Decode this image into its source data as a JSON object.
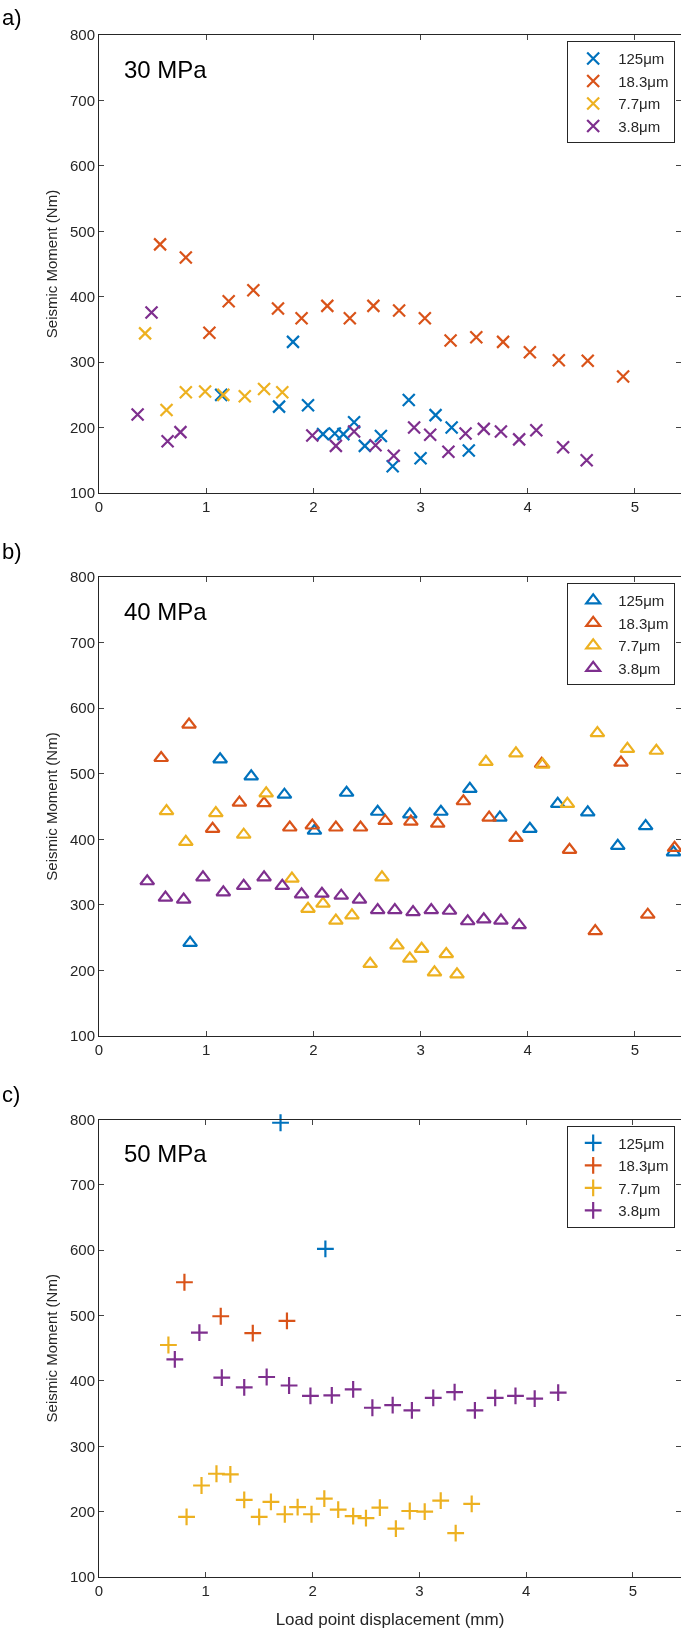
{
  "chart_data": [
    {
      "type": "scatter",
      "title": "a)",
      "subtitle": "30 MPa",
      "ylabel": "Seismic Moment (Nm)",
      "marker": "x",
      "legend": "top right",
      "xlim": [
        0,
        5.43
      ],
      "xticks": [
        0,
        1,
        2,
        3,
        4,
        5
      ],
      "ylim": [
        100,
        800
      ],
      "yticks": [
        100,
        200,
        300,
        400,
        500,
        600,
        700,
        800
      ],
      "series": [
        {
          "name": "125μm",
          "color": "#0072bd",
          "x": [
            1.81,
            1.14,
            1.68,
            1.95,
            2.09,
            2.2,
            2.28,
            2.38,
            2.48,
            2.63,
            2.74,
            2.89,
            3.0,
            3.14,
            3.29,
            3.45
          ],
          "values": [
            331,
            250,
            232,
            234,
            190,
            191,
            190,
            208,
            172,
            187,
            141,
            242,
            153,
            219,
            200,
            165
          ]
        },
        {
          "name": "18.3μm",
          "color": "#d95319",
          "x": [
            0.57,
            0.81,
            1.03,
            1.21,
            1.44,
            1.67,
            1.89,
            2.13,
            2.34,
            2.56,
            2.8,
            3.04,
            3.28,
            3.52,
            3.77,
            4.02,
            4.29,
            4.56,
            4.89
          ],
          "values": [
            480,
            460,
            345,
            393,
            410,
            382,
            367,
            386,
            367,
            386,
            379,
            367,
            333,
            338,
            331,
            315,
            303,
            302,
            278
          ]
        },
        {
          "name": "7.7μm",
          "color": "#edb120",
          "x": [
            0.43,
            0.63,
            0.81,
            0.99,
            1.16,
            1.36,
            1.54,
            1.71
          ],
          "values": [
            344,
            227,
            254,
            255,
            250,
            248,
            259,
            254
          ]
        },
        {
          "name": "3.8μm",
          "color": "#7e2f8e",
          "x": [
            0.36,
            0.49,
            0.64,
            0.76,
            1.99,
            2.21,
            2.38,
            2.58,
            2.75,
            2.94,
            3.09,
            3.26,
            3.42,
            3.59,
            3.75,
            3.92,
            4.08,
            4.33,
            4.55
          ],
          "values": [
            220,
            376,
            179,
            193,
            188,
            172,
            194,
            173,
            157,
            200,
            189,
            163,
            191,
            198,
            194,
            182,
            196,
            170,
            150
          ]
        }
      ]
    },
    {
      "type": "scatter",
      "title": "b)",
      "subtitle": "40 MPa",
      "ylabel": "Seismic Moment (Nm)",
      "marker": "triangle",
      "legend": "top right",
      "xlim": [
        0,
        5.43
      ],
      "xticks": [
        0,
        1,
        2,
        3,
        4,
        5
      ],
      "ylim": [
        100,
        800
      ],
      "yticks": [
        100,
        200,
        300,
        400,
        500,
        600,
        700,
        800
      ],
      "series": [
        {
          "name": "125μm",
          "color": "#0072bd",
          "x": [
            1.13,
            1.42,
            1.73,
            0.85,
            2.01,
            2.31,
            2.6,
            2.9,
            3.19,
            3.46,
            3.74,
            4.02,
            4.28,
            4.56,
            4.84,
            5.1,
            5.36
          ],
          "values": [
            522,
            496,
            468,
            242,
            413,
            471,
            442,
            438,
            442,
            477,
            433,
            416,
            454,
            441,
            390,
            420,
            380
          ]
        },
        {
          "name": "18.3μm",
          "color": "#d95319",
          "x": [
            0.58,
            0.84,
            1.06,
            1.31,
            1.54,
            1.78,
            1.99,
            2.21,
            2.44,
            2.67,
            2.91,
            3.16,
            3.4,
            3.64,
            3.89,
            4.13,
            4.39,
            4.63,
            4.87,
            5.12,
            5.37
          ],
          "values": [
            524,
            575,
            416,
            456,
            455,
            418,
            421,
            418,
            418,
            428,
            427,
            424,
            458,
            433,
            402,
            515,
            384,
            260,
            517,
            285,
            387
          ]
        },
        {
          "name": "7.7μm",
          "color": "#edb120",
          "x": [
            0.63,
            0.81,
            1.09,
            1.35,
            1.56,
            1.8,
            1.95,
            2.09,
            2.21,
            2.36,
            2.53,
            2.64,
            2.78,
            2.9,
            3.01,
            3.13,
            3.24,
            3.34,
            3.61,
            3.89,
            4.14,
            4.37,
            4.65,
            4.93,
            5.2
          ],
          "values": [
            443,
            396,
            440,
            407,
            470,
            340,
            294,
            302,
            276,
            284,
            210,
            342,
            238,
            218,
            233,
            197,
            225,
            194,
            518,
            531,
            514,
            454,
            562,
            538,
            535
          ]
        },
        {
          "name": "3.8μm",
          "color": "#7e2f8e",
          "x": [
            0.45,
            0.62,
            0.79,
            0.97,
            1.16,
            1.35,
            1.54,
            1.71,
            1.89,
            2.08,
            2.26,
            2.43,
            2.6,
            2.76,
            2.93,
            3.1,
            3.27,
            3.44,
            3.59,
            3.75,
            3.92
          ],
          "values": [
            336,
            311,
            308,
            342,
            319,
            329,
            342,
            329,
            316,
            317,
            314,
            308,
            292,
            292,
            289,
            292,
            291,
            275,
            278,
            276,
            269
          ]
        }
      ]
    },
    {
      "type": "scatter",
      "title": "c)",
      "subtitle": "50 MPa",
      "xlabel": "Load point displacement (mm)",
      "ylabel": "Seismic Moment (Nm)",
      "marker": "cross",
      "legend": "top right",
      "xlim": [
        0,
        5.45
      ],
      "xticks": [
        0,
        1,
        2,
        3,
        4,
        5
      ],
      "ylim": [
        100,
        800
      ],
      "yticks": [
        100,
        200,
        300,
        400,
        500,
        600,
        700,
        800
      ],
      "series": [
        {
          "name": "125μm",
          "color": "#0072bd",
          "x": [
            1.7,
            2.12
          ],
          "values": [
            795,
            602
          ]
        },
        {
          "name": "18.3μm",
          "color": "#d95319",
          "x": [
            0.8,
            1.14,
            1.44,
            1.76
          ],
          "values": [
            551,
            499,
            473,
            492
          ]
        },
        {
          "name": "7.7μm",
          "color": "#edb120",
          "x": [
            0.65,
            0.82,
            0.96,
            1.1,
            1.23,
            1.36,
            1.5,
            1.61,
            1.74,
            1.86,
            1.99,
            2.11,
            2.24,
            2.38,
            2.5,
            2.63,
            2.78,
            2.91,
            3.05,
            3.2,
            3.34,
            3.49
          ],
          "values": [
            455,
            192,
            240,
            258,
            257,
            218,
            192,
            215,
            196,
            207,
            196,
            220,
            203,
            193,
            190,
            206,
            174,
            201,
            200,
            217,
            167,
            212
          ]
        },
        {
          "name": "3.8μm",
          "color": "#7e2f8e",
          "x": [
            0.71,
            0.94,
            1.15,
            1.36,
            1.57,
            1.78,
            1.98,
            2.18,
            2.38,
            2.56,
            2.75,
            2.93,
            3.13,
            3.33,
            3.52,
            3.71,
            3.9,
            4.08,
            4.3
          ],
          "values": [
            433,
            474,
            405,
            390,
            406,
            393,
            377,
            378,
            387,
            359,
            363,
            355,
            374,
            383,
            355,
            374,
            377,
            373,
            382
          ]
        }
      ]
    }
  ]
}
